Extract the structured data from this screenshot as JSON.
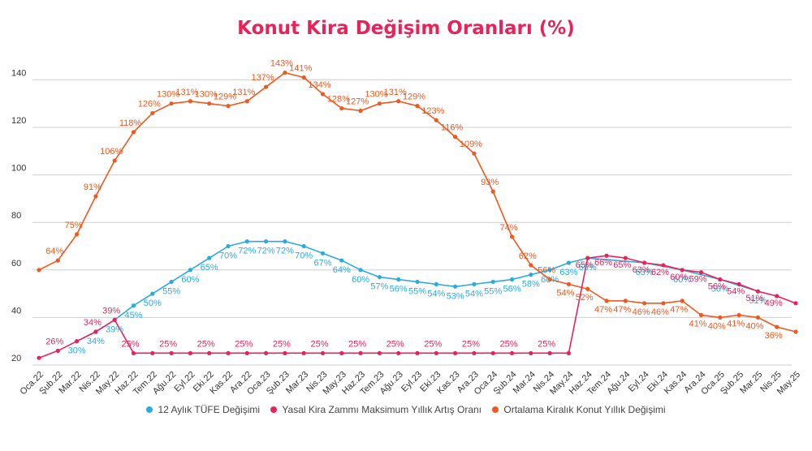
{
  "chart_data": {
    "type": "line",
    "title": "Konut Kira Değişim Oranları (%)",
    "xlabel": "",
    "ylabel": "",
    "ylim": [
      20,
      145
    ],
    "yticks": [
      20,
      40,
      60,
      80,
      100,
      120,
      140
    ],
    "grid": true,
    "legend_position": "bottom",
    "categories": [
      "Oca.22",
      "Şub.22",
      "Mar.22",
      "Nis.22",
      "May.22",
      "Haz.22",
      "Tem.22",
      "Ağu.22",
      "Eyl.22",
      "Eki.22",
      "Kas.22",
      "Ara.22",
      "Oca.23",
      "Şub.23",
      "Mar.23",
      "Nis.23",
      "May.23",
      "Haz.23",
      "Tem.23",
      "Ağu.23",
      "Eyl.23",
      "Eki.23",
      "Kas.23",
      "Ara.23",
      "Oca.24",
      "Şub.24",
      "Mar.24",
      "Nis.24",
      "May.24",
      "Haz.24",
      "Tem.24",
      "Ağu.24",
      "Eyl.24",
      "Eki.24",
      "Kas.24",
      "Ara.24",
      "Oca.25",
      "Şub.25",
      "Mar.25",
      "Nis.25",
      "May.25"
    ],
    "series": [
      {
        "name": "Ortalama Kiralık Konut Yıllık Değişimi",
        "color": "#f0581e",
        "values": [
          60,
          64,
          75,
          91,
          106,
          118,
          126,
          130,
          131,
          130,
          129,
          131,
          137,
          143,
          141,
          134,
          128,
          127,
          130,
          131,
          129,
          123,
          116,
          109,
          93,
          74,
          62,
          56,
          54,
          52,
          47,
          47,
          46,
          46,
          47,
          41,
          40,
          41,
          40,
          36,
          34
        ]
      },
      {
        "name": "12 Aylık TÜFE Değişimi",
        "color": "#29abe2",
        "values": [
          null,
          null,
          30,
          34,
          39,
          45,
          50,
          55,
          60,
          65,
          70,
          72,
          72,
          72,
          70,
          67,
          64,
          60,
          57,
          56,
          55,
          54,
          53,
          54,
          55,
          56,
          58,
          60,
          63,
          65,
          null,
          null,
          63,
          null,
          60,
          null,
          56,
          null,
          51,
          null,
          null
        ]
      },
      {
        "name": "Yasal Kira Zammı Maksimum Yıllık Artış Oranı",
        "color": "#e8235a",
        "values": [
          23,
          26,
          30,
          34,
          39,
          25,
          25,
          25,
          25,
          25,
          25,
          25,
          25,
          25,
          25,
          25,
          25,
          25,
          25,
          25,
          25,
          25,
          25,
          25,
          25,
          25,
          25,
          25,
          25,
          65,
          66,
          65,
          63,
          62,
          60,
          59,
          56,
          54,
          51,
          49,
          46
        ]
      }
    ],
    "data_labels": [
      {
        "series": 0,
        "index": 1,
        "text": "64%"
      },
      {
        "series": 0,
        "index": 2,
        "text": "75%"
      },
      {
        "series": 0,
        "index": 3,
        "text": "91%"
      },
      {
        "series": 0,
        "index": 4,
        "text": "106%"
      },
      {
        "series": 0,
        "index": 5,
        "text": "118%"
      },
      {
        "series": 0,
        "index": 6,
        "text": "126%"
      },
      {
        "series": 0,
        "index": 7,
        "text": "130%"
      },
      {
        "series": 0,
        "index": 8,
        "text": "131%"
      },
      {
        "series": 0,
        "index": 9,
        "text": "130%"
      },
      {
        "series": 0,
        "index": 10,
        "text": "129%"
      },
      {
        "series": 0,
        "index": 11,
        "text": "131%"
      },
      {
        "series": 0,
        "index": 12,
        "text": "137%"
      },
      {
        "series": 0,
        "index": 13,
        "text": "143%"
      },
      {
        "series": 0,
        "index": 14,
        "text": "141%"
      },
      {
        "series": 0,
        "index": 15,
        "text": "134%"
      },
      {
        "series": 0,
        "index": 16,
        "text": "128%"
      },
      {
        "series": 0,
        "index": 17,
        "text": "127%"
      },
      {
        "series": 0,
        "index": 18,
        "text": "130%"
      },
      {
        "series": 0,
        "index": 19,
        "text": "131%"
      },
      {
        "series": 0,
        "index": 20,
        "text": "129%"
      },
      {
        "series": 0,
        "index": 21,
        "text": "123%"
      },
      {
        "series": 0,
        "index": 22,
        "text": "116%"
      },
      {
        "series": 0,
        "index": 23,
        "text": "109%"
      },
      {
        "series": 0,
        "index": 24,
        "text": "93%"
      },
      {
        "series": 0,
        "index": 25,
        "text": "74%"
      },
      {
        "series": 0,
        "index": 26,
        "text": "62%"
      },
      {
        "series": 0,
        "index": 27,
        "text": "56%"
      },
      {
        "series": 0,
        "index": 28,
        "text": "54%"
      },
      {
        "series": 0,
        "index": 29,
        "text": "52%"
      },
      {
        "series": 0,
        "index": 30,
        "text": "47%"
      },
      {
        "series": 0,
        "index": 31,
        "text": "47%"
      },
      {
        "series": 0,
        "index": 32,
        "text": "46%"
      },
      {
        "series": 0,
        "index": 33,
        "text": "46%"
      },
      {
        "series": 0,
        "index": 34,
        "text": "47%"
      },
      {
        "series": 0,
        "index": 35,
        "text": "41%"
      },
      {
        "series": 0,
        "index": 36,
        "text": "40%"
      },
      {
        "series": 0,
        "index": 37,
        "text": "41%"
      },
      {
        "series": 0,
        "index": 38,
        "text": "40%"
      },
      {
        "series": 0,
        "index": 39,
        "text": "36%"
      },
      {
        "series": 1,
        "index": 2,
        "text": "30%"
      },
      {
        "series": 1,
        "index": 3,
        "text": "34%"
      },
      {
        "series": 1,
        "index": 4,
        "text": "39%"
      },
      {
        "series": 1,
        "index": 5,
        "text": "45%"
      },
      {
        "series": 1,
        "index": 6,
        "text": "50%"
      },
      {
        "series": 1,
        "index": 7,
        "text": "55%"
      },
      {
        "series": 1,
        "index": 8,
        "text": "60%"
      },
      {
        "series": 1,
        "index": 9,
        "text": "65%"
      },
      {
        "series": 1,
        "index": 10,
        "text": "70%"
      },
      {
        "series": 1,
        "index": 11,
        "text": "72%"
      },
      {
        "series": 1,
        "index": 12,
        "text": "72%"
      },
      {
        "series": 1,
        "index": 13,
        "text": "72%"
      },
      {
        "series": 1,
        "index": 14,
        "text": "70%"
      },
      {
        "series": 1,
        "index": 15,
        "text": "67%"
      },
      {
        "series": 1,
        "index": 16,
        "text": "64%"
      },
      {
        "series": 1,
        "index": 17,
        "text": "60%"
      },
      {
        "series": 1,
        "index": 18,
        "text": "57%"
      },
      {
        "series": 1,
        "index": 19,
        "text": "56%"
      },
      {
        "series": 1,
        "index": 20,
        "text": "55%"
      },
      {
        "series": 1,
        "index": 21,
        "text": "54%"
      },
      {
        "series": 1,
        "index": 22,
        "text": "53%"
      },
      {
        "series": 1,
        "index": 23,
        "text": "54%"
      },
      {
        "series": 1,
        "index": 24,
        "text": "55%"
      },
      {
        "series": 1,
        "index": 25,
        "text": "56%"
      },
      {
        "series": 1,
        "index": 26,
        "text": "58%"
      },
      {
        "series": 1,
        "index": 27,
        "text": "60%"
      },
      {
        "series": 1,
        "index": 28,
        "text": "63%"
      },
      {
        "series": 1,
        "index": 29,
        "text": "65%"
      },
      {
        "series": 1,
        "index": 32,
        "text": "63%"
      },
      {
        "series": 1,
        "index": 34,
        "text": "60%"
      },
      {
        "series": 1,
        "index": 36,
        "text": "56%"
      },
      {
        "series": 1,
        "index": 38,
        "text": "51%"
      },
      {
        "series": 2,
        "index": 1,
        "text": "26%"
      },
      {
        "series": 2,
        "index": 3,
        "text": "34%"
      },
      {
        "series": 2,
        "index": 4,
        "text": "39%"
      },
      {
        "series": 2,
        "index": 5,
        "text": "25%"
      },
      {
        "series": 2,
        "index": 7,
        "text": "25%"
      },
      {
        "series": 2,
        "index": 9,
        "text": "25%"
      },
      {
        "series": 2,
        "index": 11,
        "text": "25%"
      },
      {
        "series": 2,
        "index": 13,
        "text": "25%"
      },
      {
        "series": 2,
        "index": 15,
        "text": "25%"
      },
      {
        "series": 2,
        "index": 17,
        "text": "25%"
      },
      {
        "series": 2,
        "index": 19,
        "text": "25%"
      },
      {
        "series": 2,
        "index": 21,
        "text": "25%"
      },
      {
        "series": 2,
        "index": 23,
        "text": "25%"
      },
      {
        "series": 2,
        "index": 25,
        "text": "25%"
      },
      {
        "series": 2,
        "index": 27,
        "text": "25%"
      },
      {
        "series": 2,
        "index": 29,
        "text": "65%"
      },
      {
        "series": 2,
        "index": 30,
        "text": "66%"
      },
      {
        "series": 2,
        "index": 31,
        "text": "65%"
      },
      {
        "series": 2,
        "index": 32,
        "text": "63%"
      },
      {
        "series": 2,
        "index": 33,
        "text": "62%"
      },
      {
        "series": 2,
        "index": 34,
        "text": "60%"
      },
      {
        "series": 2,
        "index": 35,
        "text": "59%"
      },
      {
        "series": 2,
        "index": 36,
        "text": "56%"
      },
      {
        "series": 2,
        "index": 37,
        "text": "54%"
      },
      {
        "series": 2,
        "index": 38,
        "text": "51%"
      },
      {
        "series": 2,
        "index": 39,
        "text": "49%"
      }
    ]
  },
  "legend": {
    "items": [
      {
        "label": "12 Aylık TÜFE Değişimi",
        "color": "#29abe2"
      },
      {
        "label": "Yasal Kira Zammı Maksimum Yıllık Artış Oranı",
        "color": "#e8235a"
      },
      {
        "label": "Ortalama Kiralık Konut Yıllık Değişimi",
        "color": "#f0581e"
      }
    ]
  }
}
